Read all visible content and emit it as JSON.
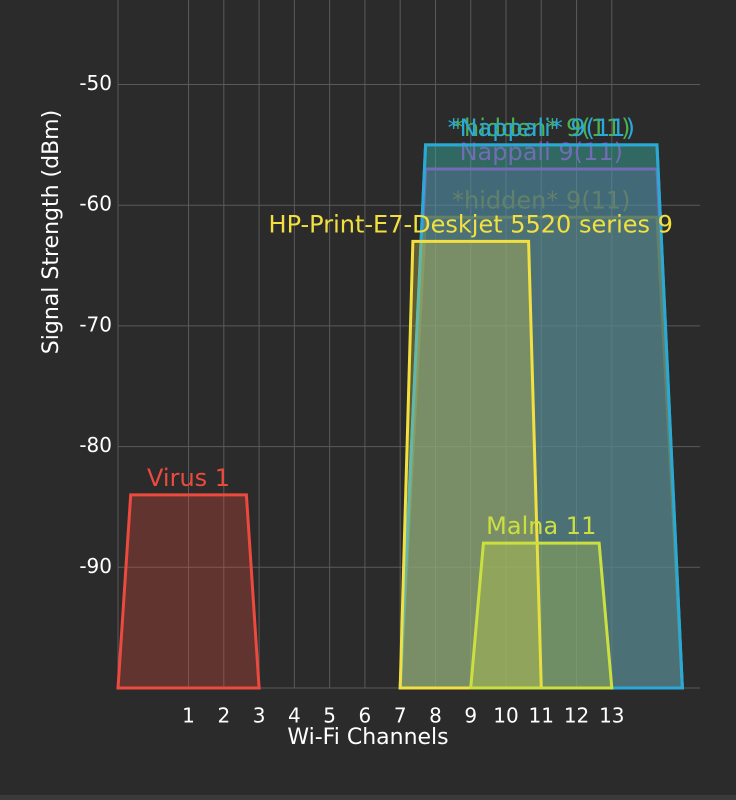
{
  "chart_data": {
    "type": "channel-graph",
    "y_label": "Signal Strength (dBm)",
    "x_label": "Wi-Fi Channels",
    "ylim": [
      -100,
      -43
    ],
    "yticks": [
      -90,
      -80,
      -70,
      -60,
      -50
    ],
    "xlim": [
      -1,
      15.5
    ],
    "xticks": [
      1,
      2,
      3,
      4,
      5,
      6,
      7,
      8,
      9,
      10,
      11,
      12,
      13
    ],
    "grid": true,
    "series": [
      {
        "name": "Nappali 9(11)",
        "color": "#a632c8",
        "channel": 11,
        "bandwidth_mhz": 40,
        "value": -57
      },
      {
        "name": "*hidden* 9(11)",
        "color": "#8a5a3c",
        "channel": 11,
        "bandwidth_mhz": 40,
        "value": -61
      },
      {
        "name": "*hidden* 9(11)",
        "color": "#4caf50",
        "channel": 11,
        "bandwidth_mhz": 40,
        "value": -55
      },
      {
        "name": "*Nappali* 9(11)",
        "color": "#2aa8d8",
        "channel": 11,
        "bandwidth_mhz": 40,
        "value": -55
      },
      {
        "name": "HP-Print-E7-Deskjet 5520 series 9",
        "color": "#f2e040",
        "channel": 9,
        "bandwidth_mhz": 20,
        "value": -63
      },
      {
        "name": "Malna 11",
        "color": "#cbe040",
        "channel": 11,
        "bandwidth_mhz": 20,
        "value": -88
      },
      {
        "name": "Virus 1",
        "color": "#ec4a3e",
        "channel": 1,
        "bandwidth_mhz": 20,
        "value": -84
      }
    ]
  }
}
